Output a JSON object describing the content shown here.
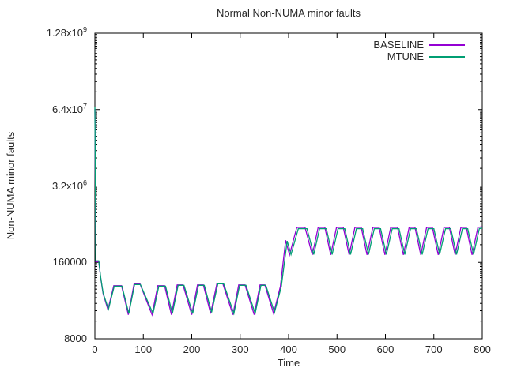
{
  "page": {
    "background": "#ffffff",
    "text_color": "#262626",
    "axis_color": "#000000"
  },
  "chart_data": {
    "type": "line",
    "title": "Normal Non-NUMA minor faults",
    "xlabel": "Time",
    "ylabel": "Non-NUMA minor faults",
    "grid": false,
    "legend_position": "top-right-inside",
    "x_scale": "linear",
    "xlim": [
      0,
      800
    ],
    "x_ticks": [
      0,
      100,
      200,
      300,
      400,
      500,
      600,
      700,
      800
    ],
    "y_scale": "log",
    "y_log_factor_per_division": 20,
    "ylim": [
      8000,
      1280000000
    ],
    "y_ticks": [
      {
        "value": 8000,
        "label": "8000"
      },
      {
        "value": 160000,
        "label": "160000"
      },
      {
        "value": 3200000,
        "label": "3.2x10^6"
      },
      {
        "value": 64000000,
        "label": "6.4x10^7"
      },
      {
        "value": 1280000000,
        "label": "1.28x10^9"
      }
    ],
    "series": [
      {
        "name": "BASELINE",
        "color": "#9400d3",
        "points": [
          [
            0,
            65000000
          ],
          [
            2,
            165000
          ],
          [
            8,
            165000
          ],
          [
            12,
            88000
          ],
          [
            17,
            47000
          ],
          [
            27,
            25000
          ],
          [
            39,
            64000
          ],
          [
            55,
            64000
          ],
          [
            69,
            20500
          ],
          [
            81,
            69000
          ],
          [
            93,
            69000
          ],
          [
            118,
            20500
          ],
          [
            130,
            64000
          ],
          [
            144,
            64000
          ],
          [
            158,
            20500
          ],
          [
            170,
            66000
          ],
          [
            182,
            66000
          ],
          [
            200,
            20500
          ],
          [
            212,
            66000
          ],
          [
            224,
            66000
          ],
          [
            239,
            21500
          ],
          [
            252,
            70000
          ],
          [
            264,
            70000
          ],
          [
            285,
            20500
          ],
          [
            297,
            66000
          ],
          [
            310,
            66000
          ],
          [
            329,
            20500
          ],
          [
            341,
            66000
          ],
          [
            351,
            66000
          ],
          [
            369,
            21500
          ],
          [
            383,
            62000
          ],
          [
            394,
            380000
          ],
          [
            402,
            215000
          ],
          [
            417,
            630000
          ],
          [
            434,
            630000
          ],
          [
            449,
            215000
          ],
          [
            461,
            630000
          ],
          [
            475,
            630000
          ],
          [
            487,
            215000
          ],
          [
            499,
            630000
          ],
          [
            513,
            630000
          ],
          [
            525,
            215000
          ],
          [
            537,
            630000
          ],
          [
            550,
            630000
          ],
          [
            562,
            215000
          ],
          [
            574,
            630000
          ],
          [
            587,
            630000
          ],
          [
            599,
            215000
          ],
          [
            611,
            630000
          ],
          [
            625,
            630000
          ],
          [
            637,
            215000
          ],
          [
            649,
            630000
          ],
          [
            661,
            630000
          ],
          [
            673,
            215000
          ],
          [
            685,
            630000
          ],
          [
            697,
            630000
          ],
          [
            709,
            215000
          ],
          [
            721,
            630000
          ],
          [
            732,
            630000
          ],
          [
            744,
            215000
          ],
          [
            756,
            630000
          ],
          [
            767,
            630000
          ],
          [
            779,
            215000
          ],
          [
            791,
            630000
          ],
          [
            800,
            645000
          ]
        ]
      },
      {
        "name": "MTUNE",
        "color": "#009e73",
        "points": [
          [
            0,
            70000000
          ],
          [
            2,
            170000
          ],
          [
            8,
            170000
          ],
          [
            12,
            90000
          ],
          [
            17,
            48000
          ],
          [
            28,
            25500
          ],
          [
            40,
            63000
          ],
          [
            56,
            63000
          ],
          [
            70,
            21500
          ],
          [
            82,
            67000
          ],
          [
            94,
            67000
          ],
          [
            120,
            21500
          ],
          [
            132,
            63000
          ],
          [
            146,
            63000
          ],
          [
            160,
            21500
          ],
          [
            172,
            65000
          ],
          [
            184,
            65000
          ],
          [
            202,
            21500
          ],
          [
            214,
            65000
          ],
          [
            226,
            65000
          ],
          [
            241,
            22500
          ],
          [
            254,
            69000
          ],
          [
            266,
            69000
          ],
          [
            287,
            21500
          ],
          [
            299,
            65000
          ],
          [
            312,
            65000
          ],
          [
            331,
            21500
          ],
          [
            343,
            65000
          ],
          [
            353,
            65000
          ],
          [
            371,
            22500
          ],
          [
            385,
            62000
          ],
          [
            397,
            370000
          ],
          [
            405,
            218000
          ],
          [
            420,
            600000
          ],
          [
            438,
            600000
          ],
          [
            452,
            218000
          ],
          [
            464,
            600000
          ],
          [
            478,
            600000
          ],
          [
            490,
            218000
          ],
          [
            502,
            600000
          ],
          [
            516,
            600000
          ],
          [
            528,
            218000
          ],
          [
            540,
            600000
          ],
          [
            553,
            600000
          ],
          [
            565,
            218000
          ],
          [
            577,
            600000
          ],
          [
            590,
            600000
          ],
          [
            602,
            218000
          ],
          [
            614,
            600000
          ],
          [
            628,
            600000
          ],
          [
            640,
            218000
          ],
          [
            652,
            600000
          ],
          [
            664,
            600000
          ],
          [
            676,
            218000
          ],
          [
            688,
            600000
          ],
          [
            700,
            600000
          ],
          [
            712,
            218000
          ],
          [
            724,
            600000
          ],
          [
            735,
            600000
          ],
          [
            747,
            218000
          ],
          [
            759,
            600000
          ],
          [
            770,
            600000
          ],
          [
            782,
            218000
          ],
          [
            794,
            600000
          ],
          [
            800,
            615000
          ]
        ]
      }
    ]
  }
}
